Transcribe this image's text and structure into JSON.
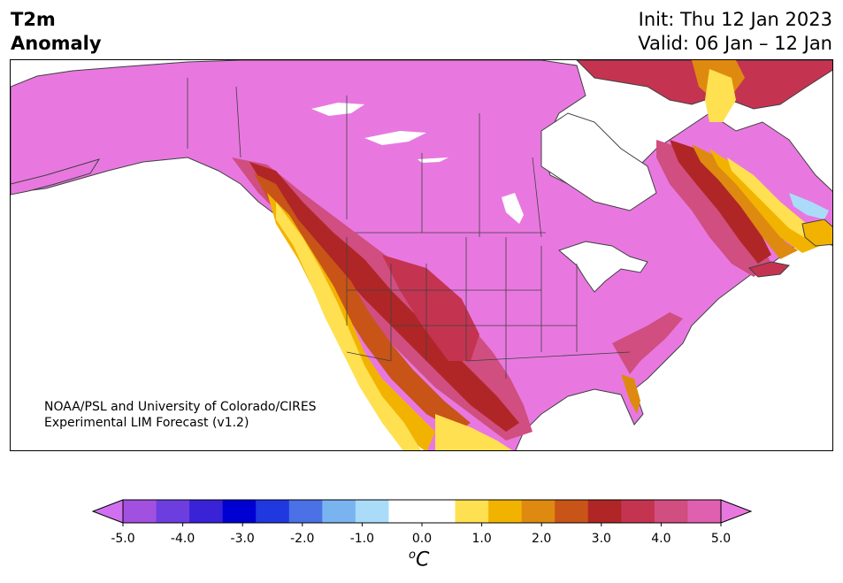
{
  "header": {
    "title_line1": "T2m",
    "title_line2": "Anomaly",
    "init_text": "Init: Thu 12 Jan 2023",
    "valid_text": "Valid: 06 Jan – 12 Jan"
  },
  "credit": {
    "line1": "NOAA/PSL and University of Colorado/CIRES",
    "line2": "Experimental LIM Forecast (v1.2)"
  },
  "colorbar": {
    "unit_base": "C",
    "unit_sup": "o",
    "tick_labels": [
      "-5.0",
      "-4.0",
      "-3.0",
      "-2.0",
      "-1.0",
      "0.0",
      "1.0",
      "2.0",
      "3.0",
      "4.0",
      "5.0"
    ],
    "colors": [
      "#a150e0",
      "#6c3ee0",
      "#3a22d6",
      "#0000d2",
      "#2038e0",
      "#4a72e6",
      "#7ab4f0",
      "#aadcfa",
      "#ffffff",
      "#ffffff",
      "#ffe050",
      "#f2b300",
      "#de8a10",
      "#c85418",
      "#b02626",
      "#c43450",
      "#d04e80",
      "#e060b0"
    ],
    "under_color": "#d070f0",
    "over_color": "#e878e0"
  },
  "map": {
    "anomaly_colors": {
      "ocean": "#ffffff",
      "plus5": "#e878e0",
      "plus45": "#e060b0",
      "plus4": "#d04e80",
      "plus35": "#c43450",
      "plus3": "#b02626",
      "plus25": "#c85418",
      "plus2": "#de8a10",
      "plus15": "#f2b300",
      "plus1": "#ffe050",
      "minus1": "#aadcfa",
      "border": "#404040"
    }
  }
}
